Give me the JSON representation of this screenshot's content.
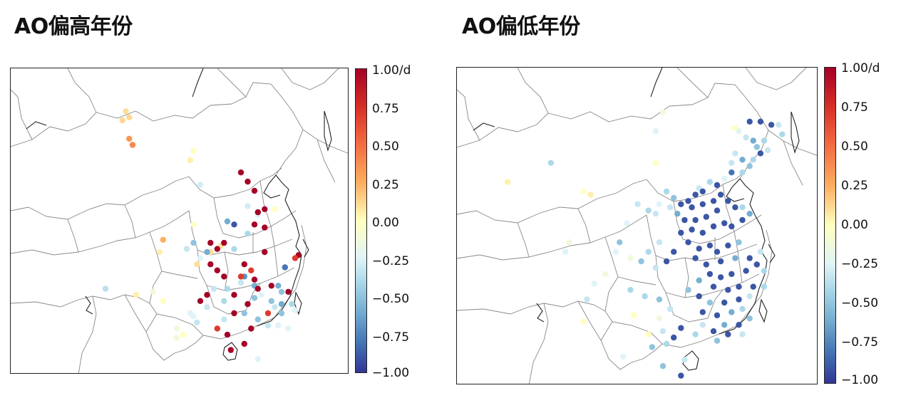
{
  "panels": [
    {
      "title": "AO偏高年份",
      "colorbar": {
        "ticks": [
          "1.00/d",
          "0.75",
          "0.50",
          "0.25",
          "0.00",
          "−0.25",
          "−0.50",
          "−0.75",
          "−1.00"
        ],
        "min": -1.0,
        "max": 1.0
      },
      "stations": [
        [
          -0.35,
          0.28,
          0.72
        ],
        [
          0.12,
          0.33,
          0.17
        ],
        [
          0.12,
          0.35,
          0.16
        ],
        [
          0.1,
          0.34,
          0.14
        ],
        [
          0.35,
          0.35,
          0.23
        ],
        [
          0.4,
          0.36,
          0.25
        ],
        [
          0.0,
          0.54,
          0.27
        ],
        [
          -0.25,
          0.56,
          0.38
        ],
        [
          0.05,
          0.53,
          0.3
        ],
        [
          0.0,
          0.54,
          0.51
        ],
        [
          0.1,
          0.62,
          0.58
        ],
        [
          0.1,
          0.59,
          0.6
        ],
        [
          0.1,
          0.55,
          0.64
        ],
        [
          0.05,
          0.44,
          0.6
        ],
        [
          0.25,
          0.45,
          0.56
        ],
        [
          1.0,
          0.68,
          0.34
        ],
        [
          1.0,
          0.7,
          0.37
        ],
        [
          1.0,
          0.72,
          0.4
        ],
        [
          -0.2,
          0.73,
          0.48
        ],
        [
          -0.25,
          0.7,
          0.45
        ],
        [
          0.0,
          0.78,
          0.46
        ],
        [
          1.0,
          0.75,
          0.46
        ],
        [
          1.0,
          0.73,
          0.47
        ],
        [
          -0.6,
          0.64,
          0.5
        ],
        [
          -0.9,
          0.66,
          0.51
        ],
        [
          -0.4,
          0.7,
          0.54
        ],
        [
          1.0,
          0.72,
          0.51
        ],
        [
          1.0,
          0.75,
          0.52
        ],
        [
          1.0,
          0.63,
          0.57
        ],
        [
          1.0,
          0.59,
          0.57
        ],
        [
          1.0,
          0.61,
          0.59
        ],
        [
          -0.6,
          0.58,
          0.6
        ],
        [
          -0.4,
          0.66,
          0.59
        ],
        [
          1.0,
          0.75,
          0.6
        ],
        [
          1.0,
          0.69,
          0.64
        ],
        [
          1.0,
          0.59,
          0.64
        ],
        [
          1.0,
          0.61,
          0.66
        ],
        [
          1.0,
          0.63,
          0.68
        ],
        [
          -0.7,
          0.69,
          0.68
        ],
        [
          0.7,
          0.68,
          0.68
        ],
        [
          -0.3,
          0.68,
          0.7
        ],
        [
          -0.6,
          0.72,
          0.71
        ],
        [
          1.0,
          0.72,
          0.69
        ],
        [
          0.7,
          0.71,
          0.66
        ],
        [
          1.0,
          0.77,
          0.71
        ],
        [
          -0.6,
          0.79,
          0.71
        ],
        [
          -0.5,
          0.8,
          0.73
        ],
        [
          1.0,
          0.82,
          0.73
        ],
        [
          1.0,
          0.85,
          0.61
        ],
        [
          0.7,
          0.84,
          0.62
        ],
        [
          -0.8,
          0.81,
          0.65
        ],
        [
          -0.5,
          0.54,
          0.57
        ],
        [
          -0.3,
          0.52,
          0.59
        ],
        [
          -0.2,
          0.56,
          0.62
        ],
        [
          -0.3,
          0.6,
          0.72
        ],
        [
          -0.4,
          0.64,
          0.72
        ],
        [
          1.0,
          0.58,
          0.74
        ],
        [
          1.0,
          0.56,
          0.76
        ],
        [
          -0.3,
          0.58,
          0.78
        ],
        [
          -0.4,
          0.63,
          0.76
        ],
        [
          1.0,
          0.66,
          0.74
        ],
        [
          1.0,
          0.7,
          0.77
        ],
        [
          -0.5,
          0.72,
          0.75
        ],
        [
          1.0,
          0.73,
          0.72
        ],
        [
          -0.2,
          0.74,
          0.74
        ],
        [
          -0.5,
          0.77,
          0.76
        ],
        [
          -0.3,
          0.78,
          0.78
        ],
        [
          -0.6,
          0.8,
          0.77
        ],
        [
          -0.4,
          0.83,
          0.77
        ],
        [
          -0.2,
          0.84,
          0.79
        ],
        [
          -0.5,
          0.8,
          0.8
        ],
        [
          0.7,
          0.76,
          0.8
        ],
        [
          -0.5,
          0.69,
          0.8
        ],
        [
          1.0,
          0.66,
          0.8
        ],
        [
          -0.3,
          0.63,
          0.82
        ],
        [
          -0.2,
          0.54,
          0.81
        ],
        [
          -0.3,
          0.55,
          0.83
        ],
        [
          0.7,
          0.61,
          0.85
        ],
        [
          1.0,
          0.64,
          0.87
        ],
        [
          1.0,
          0.71,
          0.85
        ],
        [
          -0.5,
          0.73,
          0.82
        ],
        [
          -0.3,
          0.76,
          0.84
        ],
        [
          -0.2,
          0.79,
          0.84
        ],
        [
          -0.2,
          0.82,
          0.85
        ],
        [
          1.0,
          0.69,
          0.9
        ],
        [
          1.0,
          0.65,
          0.92
        ],
        [
          -0.1,
          0.49,
          0.88
        ],
        [
          -0.1,
          0.49,
          0.85
        ],
        [
          0.0,
          0.51,
          0.87
        ],
        [
          -0.2,
          0.53,
          0.8
        ],
        [
          0.05,
          0.37,
          0.74
        ],
        [
          -0.1,
          0.42,
          0.73
        ],
        [
          0.0,
          0.45,
          0.76
        ],
        [
          -0.2,
          0.73,
          0.95
        ]
      ]
    },
    {
      "title": "AO偏低年份",
      "colorbar": {
        "ticks": [
          "1.00/d",
          "0.75",
          "0.50",
          "0.25",
          "0.00",
          "−0.25",
          "−0.50",
          "−0.75",
          "−1.00"
        ],
        "min": -1.0,
        "max": 1.0
      },
      "stations": [
        [
          -0.4,
          0.26,
          0.3
        ],
        [
          0.05,
          0.14,
          0.36
        ],
        [
          0.0,
          0.35,
          0.39
        ],
        [
          0.05,
          0.37,
          0.4
        ],
        [
          -0.1,
          0.57,
          0.14
        ],
        [
          -0.2,
          0.55,
          0.2
        ],
        [
          -0.2,
          0.47,
          0.49
        ],
        [
          -0.3,
          0.5,
          0.43
        ],
        [
          -0.4,
          0.53,
          0.45
        ],
        [
          -0.9,
          0.84,
          0.17
        ],
        [
          -0.9,
          0.87,
          0.18
        ],
        [
          -0.3,
          0.89,
          0.18
        ],
        [
          -0.9,
          0.81,
          0.17
        ],
        [
          -0.4,
          0.9,
          0.21
        ],
        [
          -0.2,
          0.78,
          0.2
        ],
        [
          0.0,
          0.77,
          0.19
        ],
        [
          -0.3,
          0.8,
          0.22
        ],
        [
          -0.6,
          0.82,
          0.23
        ],
        [
          -0.4,
          0.85,
          0.23
        ],
        [
          -0.5,
          0.83,
          0.25
        ],
        [
          -0.3,
          0.86,
          0.26
        ],
        [
          -0.9,
          0.84,
          0.27
        ],
        [
          -0.4,
          0.82,
          0.29
        ],
        [
          -0.6,
          0.79,
          0.29
        ],
        [
          -0.3,
          0.77,
          0.27
        ],
        [
          -0.5,
          0.81,
          0.31
        ],
        [
          -0.4,
          0.79,
          0.33
        ],
        [
          -0.8,
          0.76,
          0.33
        ],
        [
          -0.3,
          0.76,
          0.3
        ],
        [
          -0.2,
          0.74,
          0.35
        ],
        [
          -0.4,
          0.7,
          0.36
        ],
        [
          -0.9,
          0.72,
          0.37
        ],
        [
          -0.3,
          0.67,
          0.38
        ],
        [
          -0.9,
          0.68,
          0.39
        ],
        [
          -0.9,
          0.66,
          0.4
        ],
        [
          -0.9,
          0.64,
          0.42
        ],
        [
          -0.9,
          0.62,
          0.43
        ],
        [
          -0.9,
          0.65,
          0.44
        ],
        [
          -0.9,
          0.68,
          0.43
        ],
        [
          -0.9,
          0.71,
          0.42
        ],
        [
          -0.9,
          0.73,
          0.4
        ],
        [
          -0.9,
          0.75,
          0.42
        ],
        [
          -0.9,
          0.77,
          0.44
        ],
        [
          -0.9,
          0.72,
          0.45
        ],
        [
          -0.9,
          0.69,
          0.47
        ],
        [
          -0.9,
          0.66,
          0.48
        ],
        [
          -0.9,
          0.63,
          0.48
        ],
        [
          -0.6,
          0.61,
          0.46
        ],
        [
          -0.3,
          0.59,
          0.44
        ],
        [
          -0.5,
          0.6,
          0.41
        ],
        [
          -0.4,
          0.58,
          0.39
        ],
        [
          -0.2,
          0.56,
          0.43
        ],
        [
          -0.3,
          0.55,
          0.46
        ],
        [
          -0.9,
          0.62,
          0.52
        ],
        [
          -0.9,
          0.65,
          0.51
        ],
        [
          -0.9,
          0.68,
          0.52
        ],
        [
          -0.9,
          0.71,
          0.5
        ],
        [
          -0.9,
          0.74,
          0.49
        ],
        [
          -0.9,
          0.76,
          0.5
        ],
        [
          -0.9,
          0.79,
          0.48
        ],
        [
          -0.6,
          0.81,
          0.46
        ],
        [
          -0.4,
          0.79,
          0.44
        ],
        [
          -0.9,
          0.64,
          0.55
        ],
        [
          -0.9,
          0.67,
          0.57
        ],
        [
          -0.9,
          0.7,
          0.56
        ],
        [
          -0.9,
          0.72,
          0.58
        ],
        [
          -0.9,
          0.75,
          0.56
        ],
        [
          -0.5,
          0.78,
          0.55
        ],
        [
          -0.9,
          0.6,
          0.58
        ],
        [
          -0.3,
          0.56,
          0.55
        ],
        [
          -0.4,
          0.53,
          0.58
        ],
        [
          -0.5,
          0.51,
          0.61
        ],
        [
          -0.3,
          0.55,
          0.63
        ],
        [
          -0.9,
          0.58,
          0.61
        ],
        [
          -0.9,
          0.66,
          0.6
        ],
        [
          -0.9,
          0.69,
          0.62
        ],
        [
          -0.9,
          0.73,
          0.61
        ],
        [
          -0.6,
          0.77,
          0.6
        ],
        [
          -0.9,
          0.81,
          0.6
        ],
        [
          -0.3,
          0.84,
          0.58
        ],
        [
          -0.9,
          0.83,
          0.62
        ],
        [
          -0.4,
          0.85,
          0.64
        ],
        [
          -0.9,
          0.8,
          0.64
        ],
        [
          -0.9,
          0.76,
          0.65
        ],
        [
          -0.9,
          0.73,
          0.66
        ],
        [
          -0.9,
          0.7,
          0.65
        ],
        [
          -0.6,
          0.67,
          0.67
        ],
        [
          -0.9,
          0.71,
          0.69
        ],
        [
          -0.9,
          0.75,
          0.7
        ],
        [
          -0.9,
          0.78,
          0.69
        ],
        [
          -0.9,
          0.82,
          0.69
        ],
        [
          -0.4,
          0.85,
          0.69
        ],
        [
          -0.3,
          0.81,
          0.72
        ],
        [
          -0.9,
          0.78,
          0.73
        ],
        [
          -0.9,
          0.74,
          0.74
        ],
        [
          -0.5,
          0.7,
          0.74
        ],
        [
          -0.9,
          0.67,
          0.72
        ],
        [
          -0.5,
          0.64,
          0.7
        ],
        [
          -0.9,
          0.68,
          0.77
        ],
        [
          -0.9,
          0.72,
          0.78
        ],
        [
          -0.6,
          0.76,
          0.77
        ],
        [
          -0.4,
          0.79,
          0.76
        ],
        [
          -0.5,
          0.81,
          0.79
        ],
        [
          -0.9,
          0.78,
          0.81
        ],
        [
          -0.6,
          0.74,
          0.81
        ],
        [
          -0.9,
          0.71,
          0.83
        ],
        [
          -0.3,
          0.68,
          0.81
        ],
        [
          -0.4,
          0.66,
          0.84
        ],
        [
          -0.5,
          0.72,
          0.86
        ],
        [
          -0.9,
          0.75,
          0.84
        ],
        [
          -0.3,
          0.79,
          0.84
        ],
        [
          -0.9,
          0.62,
          0.82
        ],
        [
          -0.9,
          0.6,
          0.85
        ],
        [
          -0.4,
          0.58,
          0.87
        ],
        [
          -0.3,
          0.57,
          0.83
        ],
        [
          -0.5,
          0.54,
          0.88
        ],
        [
          0.0,
          0.53,
          0.84
        ],
        [
          -0.1,
          0.56,
          0.79
        ],
        [
          -0.4,
          0.48,
          0.7
        ],
        [
          -0.4,
          0.52,
          0.72
        ],
        [
          -0.5,
          0.56,
          0.73
        ],
        [
          -0.3,
          0.59,
          0.76
        ],
        [
          0.0,
          0.49,
          0.78
        ],
        [
          -0.1,
          0.48,
          0.6
        ],
        [
          -0.5,
          0.45,
          0.55
        ],
        [
          -0.2,
          0.44,
          0.58
        ],
        [
          -0.1,
          0.41,
          0.65
        ],
        [
          -0.2,
          0.38,
          0.68
        ],
        [
          -0.3,
          0.36,
          0.73
        ],
        [
          0.0,
          0.35,
          0.8
        ],
        [
          -0.2,
          0.46,
          0.91
        ],
        [
          -0.5,
          0.57,
          0.94
        ],
        [
          -0.9,
          0.62,
          0.97
        ],
        [
          -0.3,
          0.63,
          0.92
        ],
        [
          -0.1,
          0.31,
          0.55
        ],
        [
          -0.2,
          0.3,
          0.58
        ],
        [
          0.0,
          0.55,
          0.3
        ]
      ]
    }
  ]
}
